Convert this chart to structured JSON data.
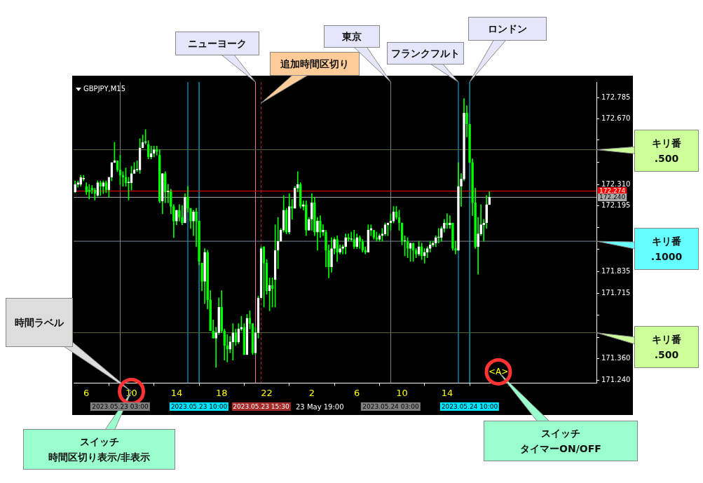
{
  "chart_data": {
    "type": "candlestick",
    "title": "GBPJPY,M15",
    "color": "#00ff00",
    "x": [
      "2023-05-23T05:00",
      "2023-05-23T05:15",
      "2023-05-23T05:30",
      "2023-05-23T05:45",
      "2023-05-23T06:00",
      "2023-05-23T06:15",
      "2023-05-23T06:30",
      "2023-05-23T06:45",
      "2023-05-23T07:00",
      "2023-05-23T07:15",
      "2023-05-23T07:30",
      "2023-05-23T07:45",
      "2023-05-23T08:00",
      "2023-05-23T08:15",
      "2023-05-23T08:30",
      "2023-05-23T08:45",
      "2023-05-23T09:00",
      "2023-05-23T09:15",
      "2023-05-23T09:30",
      "2023-05-23T09:45",
      "2023-05-23T10:00",
      "2023-05-23T10:15",
      "2023-05-23T10:30",
      "2023-05-23T10:45",
      "2023-05-23T11:00",
      "2023-05-23T11:15",
      "2023-05-23T11:30",
      "2023-05-23T11:45",
      "2023-05-23T12:00",
      "2023-05-23T12:15",
      "2023-05-23T12:30",
      "2023-05-23T12:45",
      "2023-05-23T13:00",
      "2023-05-23T13:15",
      "2023-05-23T13:30",
      "2023-05-23T13:45",
      "2023-05-23T14:00",
      "2023-05-23T14:15",
      "2023-05-23T14:30",
      "2023-05-23T14:45",
      "2023-05-23T15:00",
      "2023-05-23T15:15",
      "2023-05-23T15:30",
      "2023-05-23T15:45",
      "2023-05-23T16:00",
      "2023-05-23T16:15",
      "2023-05-23T16:30",
      "2023-05-23T16:45",
      "2023-05-23T17:00",
      "2023-05-23T17:15",
      "2023-05-23T17:30",
      "2023-05-23T17:45",
      "2023-05-23T18:00",
      "2023-05-23T18:15",
      "2023-05-23T18:30",
      "2023-05-23T18:45",
      "2023-05-23T19:00",
      "2023-05-23T19:15",
      "2023-05-23T19:30",
      "2023-05-23T19:45",
      "2023-05-23T20:00",
      "2023-05-23T20:15",
      "2023-05-23T20:30",
      "2023-05-23T20:45",
      "2023-05-23T21:00",
      "2023-05-23T21:15",
      "2023-05-23T21:30",
      "2023-05-23T21:45",
      "2023-05-23T22:00",
      "2023-05-23T22:15",
      "2023-05-23T22:30",
      "2023-05-23T22:45",
      "2023-05-23T23:00",
      "2023-05-23T23:15",
      "2023-05-23T23:30",
      "2023-05-23T23:45",
      "2023-05-24T00:00",
      "2023-05-24T00:15",
      "2023-05-24T00:30",
      "2023-05-24T00:45",
      "2023-05-24T01:00",
      "2023-05-24T01:15",
      "2023-05-24T01:30",
      "2023-05-24T01:45",
      "2023-05-24T02:00",
      "2023-05-24T02:15",
      "2023-05-24T02:30",
      "2023-05-24T02:45",
      "2023-05-24T03:00",
      "2023-05-24T03:15",
      "2023-05-24T03:30",
      "2023-05-24T03:45",
      "2023-05-24T04:00",
      "2023-05-24T04:15",
      "2023-05-24T04:30",
      "2023-05-24T04:45",
      "2023-05-24T05:00",
      "2023-05-24T05:15",
      "2023-05-24T05:30",
      "2023-05-24T05:45",
      "2023-05-24T06:00",
      "2023-05-24T06:15",
      "2023-05-24T06:30",
      "2023-05-24T06:45",
      "2023-05-24T07:00",
      "2023-05-24T07:15",
      "2023-05-24T07:30",
      "2023-05-24T07:45",
      "2023-05-24T08:00",
      "2023-05-24T08:15",
      "2023-05-24T08:30",
      "2023-05-24T08:45",
      "2023-05-24T09:00",
      "2023-05-24T09:15",
      "2023-05-24T09:30",
      "2023-05-24T09:45",
      "2023-05-24T10:00",
      "2023-05-24T10:15",
      "2023-05-24T10:30",
      "2023-05-24T10:45",
      "2023-05-24T11:00",
      "2023-05-24T11:15",
      "2023-05-24T11:30",
      "2023-05-24T11:45",
      "2023-05-24T12:00",
      "2023-05-24T12:15",
      "2023-05-24T12:30",
      "2023-05-24T12:45",
      "2023-05-24T13:00",
      "2023-05-24T13:15",
      "2023-05-24T13:30",
      "2023-05-24T13:45",
      "2023-05-24T14:00",
      "2023-05-24T14:15",
      "2023-05-24T14:30",
      "2023-05-24T14:45",
      "2023-05-24T15:00",
      "2023-05-24T15:15",
      "2023-05-24T15:30",
      "2023-05-24T15:45",
      "2023-05-24T16:00",
      "2023-05-24T16:15",
      "2023-05-24T16:30",
      "2023-05-24T16:45",
      "2023-05-24T17:00",
      "2023-05-24T17:15",
      "2023-05-24T17:30",
      "2023-05-24T17:45"
    ],
    "ohlc": [
      [
        172.27,
        172.33,
        172.265,
        172.31
      ],
      [
        172.31,
        172.33,
        172.295,
        172.32
      ],
      [
        172.31,
        172.36,
        172.3,
        172.35
      ],
      [
        172.34,
        172.36,
        172.33,
        172.345
      ],
      [
        172.3,
        172.32,
        172.255,
        172.27
      ],
      [
        172.28,
        172.31,
        172.23,
        172.27
      ],
      [
        172.29,
        172.305,
        172.26,
        172.28
      ],
      [
        172.28,
        172.29,
        172.225,
        172.26
      ],
      [
        172.25,
        172.33,
        172.245,
        172.32
      ],
      [
        172.32,
        172.33,
        172.25,
        172.3
      ],
      [
        172.3,
        172.33,
        172.26,
        172.32
      ],
      [
        172.32,
        172.33,
        172.265,
        172.28
      ],
      [
        172.28,
        172.35,
        172.24,
        172.35
      ],
      [
        172.35,
        172.43,
        172.33,
        172.43
      ],
      [
        172.43,
        172.54,
        172.43,
        172.44
      ],
      [
        172.44,
        172.44,
        172.38,
        172.39
      ],
      [
        172.39,
        172.47,
        172.31,
        172.36
      ],
      [
        172.36,
        172.38,
        172.3,
        172.35
      ],
      [
        172.35,
        172.4,
        172.3,
        172.32
      ],
      [
        172.32,
        172.35,
        172.225,
        172.32
      ],
      [
        172.32,
        172.41,
        172.28,
        172.37
      ],
      [
        172.37,
        172.43,
        172.37,
        172.39
      ],
      [
        172.39,
        172.44,
        172.38,
        172.39
      ],
      [
        172.39,
        172.56,
        172.37,
        172.51
      ],
      [
        172.51,
        172.58,
        172.51,
        172.54
      ],
      [
        172.54,
        172.61,
        172.53,
        172.54
      ],
      [
        172.53,
        172.55,
        172.45,
        172.46
      ],
      [
        172.46,
        172.52,
        172.45,
        172.48
      ],
      [
        172.48,
        172.52,
        172.46,
        172.5
      ],
      [
        172.5,
        172.52,
        172.47,
        172.49
      ],
      [
        172.47,
        172.5,
        172.21,
        172.22
      ],
      [
        172.22,
        172.37,
        172.15,
        172.37
      ],
      [
        172.37,
        172.38,
        172.21,
        172.27
      ],
      [
        172.27,
        172.31,
        172.21,
        172.27
      ],
      [
        172.27,
        172.285,
        172.15,
        172.19
      ],
      [
        172.19,
        172.2,
        172.02,
        172.11
      ],
      [
        172.11,
        172.17,
        172.09,
        172.17
      ],
      [
        172.17,
        172.2,
        172.11,
        172.13
      ],
      [
        172.13,
        172.195,
        172.09,
        172.1
      ],
      [
        172.1,
        172.26,
        172.1,
        172.24
      ],
      [
        172.24,
        172.3,
        172.16,
        172.18
      ],
      [
        172.18,
        172.18,
        172.07,
        172.11
      ],
      [
        172.11,
        172.17,
        172.03,
        172.16
      ],
      [
        172.16,
        172.18,
        171.97,
        172.11
      ],
      [
        172.11,
        172.11,
        171.87,
        171.89
      ],
      [
        171.88,
        171.88,
        171.73,
        171.78
      ],
      [
        171.78,
        171.96,
        171.66,
        171.94
      ],
      [
        171.94,
        171.95,
        171.63,
        171.68
      ],
      [
        171.68,
        171.73,
        171.51,
        171.51
      ],
      [
        171.51,
        171.57,
        171.47,
        171.47
      ],
      [
        171.47,
        171.53,
        171.31,
        171.5
      ],
      [
        171.5,
        171.69,
        171.49,
        171.64
      ],
      [
        171.64,
        171.73,
        171.5,
        171.51
      ],
      [
        171.51,
        171.52,
        171.35,
        171.43
      ],
      [
        171.43,
        171.49,
        171.34,
        171.41
      ],
      [
        171.41,
        171.48,
        171.39,
        171.45
      ],
      [
        171.45,
        171.55,
        171.35,
        171.5
      ],
      [
        171.5,
        171.52,
        171.43,
        171.45
      ],
      [
        171.45,
        171.55,
        171.44,
        171.52
      ],
      [
        171.52,
        171.59,
        171.51,
        171.53
      ],
      [
        171.53,
        171.55,
        171.38,
        171.38
      ],
      [
        171.38,
        171.6,
        171.38,
        171.58
      ],
      [
        171.58,
        171.62,
        171.52,
        171.55
      ],
      [
        171.55,
        171.55,
        171.38,
        171.39
      ],
      [
        171.39,
        171.53,
        171.38,
        171.5
      ],
      [
        171.5,
        171.7,
        171.47,
        171.69
      ],
      [
        171.69,
        171.97,
        171.69,
        171.96
      ],
      [
        171.97,
        171.97,
        171.64,
        171.88
      ],
      [
        171.88,
        171.9,
        171.71,
        171.73
      ],
      [
        171.73,
        171.8,
        171.62,
        171.76
      ],
      [
        171.76,
        171.8,
        171.64,
        171.74
      ],
      [
        171.79,
        172.09,
        171.64,
        171.95
      ],
      [
        171.95,
        172.13,
        171.85,
        172.0
      ],
      [
        172.0,
        172.07,
        172.0,
        172.06
      ],
      [
        172.06,
        172.25,
        172.05,
        172.17
      ],
      [
        172.17,
        172.18,
        172.04,
        172.05
      ],
      [
        172.05,
        172.26,
        172.04,
        172.19
      ],
      [
        172.19,
        172.23,
        172.12,
        172.18
      ],
      [
        172.18,
        172.3,
        172.18,
        172.29
      ],
      [
        172.29,
        172.38,
        172.27,
        172.31
      ],
      [
        172.31,
        172.32,
        172.18,
        172.19
      ],
      [
        172.19,
        172.22,
        172.17,
        172.2
      ],
      [
        172.2,
        172.22,
        172.03,
        172.06
      ],
      [
        172.06,
        172.13,
        172.06,
        172.12
      ],
      [
        172.12,
        172.26,
        172.06,
        172.21
      ],
      [
        172.21,
        172.24,
        172.03,
        172.05
      ],
      [
        172.05,
        172.13,
        171.95,
        172.11
      ],
      [
        172.11,
        172.14,
        172.02,
        172.05
      ],
      [
        172.05,
        172.09,
        172.03,
        172.06
      ],
      [
        172.05,
        172.06,
        171.86,
        171.95
      ],
      [
        171.95,
        171.98,
        171.8,
        171.86
      ],
      [
        171.86,
        172.02,
        171.83,
        171.96
      ],
      [
        171.96,
        172.02,
        171.93,
        172.01
      ],
      [
        172.01,
        172.03,
        171.89,
        171.94
      ],
      [
        171.94,
        171.98,
        171.93,
        171.96
      ],
      [
        171.96,
        171.98,
        171.93,
        171.97
      ],
      [
        171.97,
        172.04,
        171.93,
        172.02
      ],
      [
        172.02,
        172.04,
        172.0,
        172.01
      ],
      [
        172.01,
        172.05,
        172.0,
        172.01
      ],
      [
        172.01,
        172.06,
        171.96,
        171.97
      ],
      [
        171.97,
        172.04,
        171.96,
        172.02
      ],
      [
        172.02,
        172.03,
        171.96,
        172.0
      ],
      [
        172.0,
        172.01,
        171.94,
        171.95
      ],
      [
        171.95,
        171.97,
        171.93,
        171.94
      ],
      [
        171.94,
        172.09,
        171.94,
        172.06
      ],
      [
        172.06,
        172.09,
        172.03,
        172.07
      ],
      [
        172.06,
        172.06,
        172.01,
        172.02
      ],
      [
        172.02,
        172.05,
        172.0,
        172.01
      ],
      [
        172.01,
        172.04,
        172.0,
        172.03
      ],
      [
        172.03,
        172.07,
        172.0,
        172.04
      ],
      [
        172.04,
        172.1,
        172.03,
        172.09
      ],
      [
        172.09,
        172.1,
        172.03,
        172.1
      ],
      [
        172.1,
        172.15,
        172.06,
        172.11
      ],
      [
        172.11,
        172.19,
        172.1,
        172.16
      ],
      [
        172.16,
        172.19,
        172.12,
        172.13
      ],
      [
        172.13,
        172.17,
        172.06,
        172.1
      ],
      [
        172.1,
        172.1,
        171.98,
        172.0
      ],
      [
        172.0,
        172.03,
        171.92,
        172.0
      ],
      [
        172.0,
        172.02,
        171.91,
        171.96
      ],
      [
        171.96,
        171.99,
        171.89,
        171.99
      ],
      [
        171.99,
        171.99,
        171.89,
        171.95
      ],
      [
        171.95,
        171.96,
        171.91,
        171.93
      ],
      [
        171.93,
        172.0,
        171.92,
        171.97
      ],
      [
        171.97,
        171.99,
        171.9,
        171.92
      ],
      [
        171.92,
        171.96,
        171.88,
        171.94
      ],
      [
        171.94,
        171.97,
        171.91,
        171.96
      ],
      [
        171.96,
        172.0,
        171.94,
        171.98
      ],
      [
        171.98,
        172.0,
        171.97,
        171.99
      ],
      [
        171.99,
        172.03,
        171.97,
        172.02
      ],
      [
        172.02,
        172.07,
        171.99,
        172.02
      ],
      [
        172.02,
        172.08,
        172.0,
        172.07
      ],
      [
        172.07,
        172.12,
        172.05,
        172.1
      ],
      [
        172.1,
        172.15,
        172.07,
        172.09
      ],
      [
        172.09,
        172.14,
        172.07,
        172.1
      ],
      [
        172.1,
        172.1,
        171.95,
        171.96
      ],
      [
        171.96,
        172.0,
        171.93,
        171.95
      ],
      [
        171.95,
        172.43,
        171.95,
        172.3
      ],
      [
        172.3,
        172.37,
        172.19,
        172.34
      ],
      [
        172.34,
        172.78,
        172.33,
        172.7
      ],
      [
        172.7,
        172.74,
        172.57,
        172.64
      ],
      [
        172.64,
        172.64,
        172.43,
        172.43
      ],
      [
        172.43,
        172.45,
        172.14,
        172.21
      ],
      [
        172.21,
        172.29,
        171.96,
        171.97
      ],
      [
        171.97,
        172.13,
        171.82,
        172.04
      ],
      [
        172.04,
        172.2,
        172.03,
        172.09
      ],
      [
        172.09,
        172.12,
        172.0,
        172.1
      ],
      [
        172.1,
        172.25,
        172.07,
        172.2
      ],
      [
        172.2,
        172.27,
        172.2,
        172.24
      ]
    ],
    "colors": [
      "#ffffff",
      "#ffffff",
      "#ffffff",
      "#ffffff",
      "#00ff00",
      "#00ff00",
      "#00ff00",
      "#00ff00",
      "#ffffff",
      "#00ff00",
      "#ffffff",
      "#00ff00",
      "#ffffff",
      "#ffffff",
      "#ffffff",
      "#00ff00",
      "#00ff00",
      "#00ff00",
      "#00ff00",
      "#ffffff",
      "#ffffff",
      "#ffffff",
      "#ffffff",
      "#ffffff",
      "#ffffff",
      "#ffffff",
      "#00ff00",
      "#ffffff",
      "#ffffff",
      "#00ff00",
      "#00ff00",
      "#ffffff",
      "#00ff00",
      "#ffffff",
      "#00ff00",
      "#00ff00",
      "#ffffff",
      "#00ff00",
      "#00ff00",
      "#ffffff",
      "#00ff00",
      "#00ff00",
      "#ffffff",
      "#00ff00",
      "#00ff00",
      "#00ff00",
      "#ffffff",
      "#00ff00",
      "#00ff00",
      "#00ff00",
      "#ffffff",
      "#ffffff",
      "#00ff00",
      "#00ff00",
      "#00ff00",
      "#ffffff",
      "#ffffff",
      "#00ff00",
      "#ffffff",
      "#ffffff",
      "#00ff00",
      "#ffffff",
      "#00ff00",
      "#00ff00",
      "#ffffff",
      "#ffffff",
      "#ffffff",
      "#00ff00",
      "#00ff00",
      "#ffffff",
      "#00ff00",
      "#ffffff",
      "#ffffff",
      "#ffffff",
      "#ffffff",
      "#00ff00",
      "#ffffff",
      "#00ff00",
      "#ffffff",
      "#ffffff",
      "#00ff00",
      "#ffffff",
      "#00ff00",
      "#ffffff",
      "#ffffff",
      "#00ff00",
      "#ffffff",
      "#00ff00",
      "#ffffff",
      "#00ff00",
      "#00ff00",
      "#ffffff",
      "#ffffff",
      "#00ff00",
      "#ffffff",
      "#ffffff",
      "#ffffff",
      "#00ff00",
      "#ffffff",
      "#00ff00",
      "#ffffff",
      "#00ff00",
      "#00ff00",
      "#00ff00",
      "#ffffff",
      "#ffffff",
      "#00ff00",
      "#00ff00",
      "#ffffff",
      "#ffffff",
      "#ffffff",
      "#ffffff",
      "#ffffff",
      "#ffffff",
      "#00ff00",
      "#00ff00",
      "#00ff00",
      "#ffffff",
      "#00ff00",
      "#ffffff",
      "#00ff00",
      "#00ff00",
      "#ffffff",
      "#00ff00",
      "#ffffff",
      "#ffffff",
      "#ffffff",
      "#ffffff",
      "#ffffff",
      "#ffffff",
      "#ffffff",
      "#ffffff",
      "#00ff00",
      "#ffffff",
      "#00ff00",
      "#00ff00",
      "#ffffff",
      "#ffffff",
      "#ffffff",
      "#00ff00",
      "#00ff00",
      "#00ff00",
      "#00ff00",
      "#ffffff",
      "#ffffff",
      "#ffffff",
      "#ffffff",
      "#ffffff"
    ],
    "xlim": [
      "2023-05-23T04:52",
      "2023-05-25T03:15"
    ],
    "xticks": [
      {
        "value": "2023-05-23T06:00",
        "label": "6"
      },
      {
        "value": "2023-05-23T10:00",
        "label": "10"
      },
      {
        "value": "2023-05-23T14:00",
        "label": "14"
      },
      {
        "value": "2023-05-23T18:00",
        "label": "18"
      },
      {
        "value": "2023-05-23T22:00",
        "label": "22"
      },
      {
        "value": "2023-05-24T02:00",
        "label": "2"
      },
      {
        "value": "2023-05-24T06:00",
        "label": "6"
      },
      {
        "value": "2023-05-24T10:00",
        "label": "10"
      },
      {
        "value": "2023-05-24T14:00",
        "label": "14"
      }
    ],
    "ylim": [
      171.225,
      172.87
    ],
    "yticks": [
      {
        "value": 171.24,
        "label": "171.240"
      },
      {
        "value": 171.36,
        "label": "171.360"
      },
      {
        "value": 171.475,
        "label": null
      },
      {
        "value": 171.595,
        "label": null
      },
      {
        "value": 171.715,
        "label": "171.715"
      },
      {
        "value": 171.835,
        "label": "171.835"
      },
      {
        "value": 171.955,
        "label": null
      },
      {
        "value": 172.075,
        "label": null
      },
      {
        "value": 172.195,
        "label": "172.195"
      },
      {
        "value": 172.31,
        "label": "172.310"
      },
      {
        "value": 172.43,
        "label": null
      },
      {
        "value": 172.555,
        "label": null
      },
      {
        "value": 172.67,
        "label": "172.670"
      },
      {
        "value": 172.785,
        "label": "172.785"
      }
    ],
    "ref_lines": [
      {
        "axis": "x",
        "value": "2023-05-23T09:00",
        "color": "#808080"
      },
      {
        "axis": "x",
        "value": "2023-05-23T15:00",
        "color": "#00bfff"
      },
      {
        "axis": "x",
        "value": "2023-05-23T16:00",
        "color": "#00e5ff"
      },
      {
        "axis": "x",
        "value": "2023-05-23T21:00",
        "color": "#ff69b4"
      },
      {
        "axis": "x",
        "value": "2023-05-23T21:30",
        "color": "#a52a2a",
        "line_style": "dashed"
      },
      {
        "axis": "x",
        "value": "2023-05-24T09:00",
        "color": "#808080"
      },
      {
        "axis": "x",
        "value": "2023-05-24T15:00",
        "color": "#00bfff"
      },
      {
        "axis": "x",
        "value": "2023-05-24T16:00",
        "color": "#00e5ff"
      },
      {
        "axis": "y",
        "value": 172.5,
        "color": "#556b2f"
      },
      {
        "axis": "y",
        "value": 172.0,
        "color": "#778899"
      },
      {
        "axis": "y",
        "value": 171.5,
        "color": "#556b2f"
      },
      {
        "axis": "y",
        "value": 172.274,
        "label": "172.274",
        "color": "#ff0000"
      },
      {
        "axis": "y",
        "value": 172.24,
        "label": "172.240",
        "color": "#a9a9a9"
      }
    ],
    "annotations": [
      "ニューヨーク",
      "追加時間区切り",
      "東京",
      "フランクフルト",
      "ロンドン",
      "キリ番\n.500",
      "キリ番\n.1000",
      "キリ番\n.500",
      "時間ラベル",
      "スイッチ",
      "時間区切り表示/非表示",
      "スイッチ",
      "タイマーON/OFF",
      "<A>",
      "2023.05.23 03:00",
      "2023.05.23 10:00",
      "2023.05.23 15:30",
      "2023.05.24 03:00",
      "2023.05.24 10:00",
      "23 May 19:00"
    ]
  }
}
